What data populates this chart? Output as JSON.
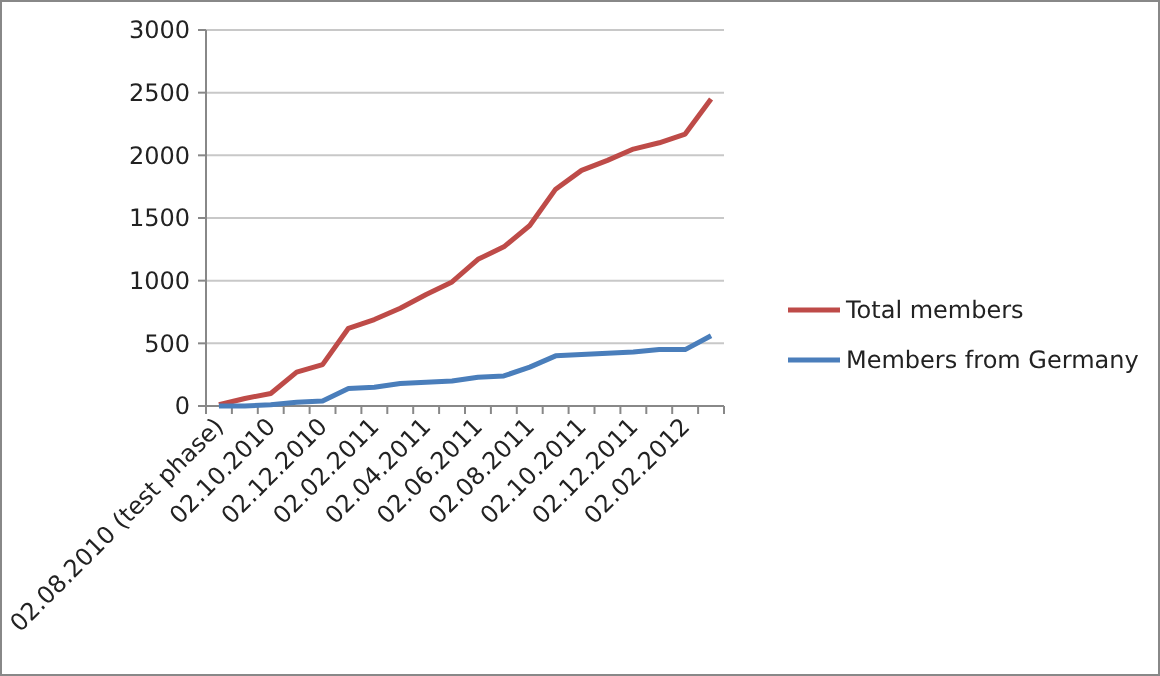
{
  "chart_data": {
    "type": "line",
    "categories": [
      "02.08.2010 (test phase)",
      null,
      "02.10.2010",
      null,
      "02.12.2010",
      null,
      "02.02.2011",
      null,
      "02.04.2011",
      null,
      "02.06.2011",
      null,
      "02.08.2011",
      null,
      "02.10.2011",
      null,
      "02.12.2011",
      null,
      "02.02.2012",
      null
    ],
    "series": [
      {
        "name": "Total members",
        "color": "#be4b48",
        "values": [
          10,
          60,
          100,
          270,
          330,
          620,
          690,
          780,
          890,
          990,
          1170,
          1270,
          1440,
          1730,
          1880,
          1960,
          2050,
          2100,
          2170,
          2450
        ]
      },
      {
        "name": "Members from Germany",
        "color": "#4a7ebb",
        "values": [
          0,
          0,
          10,
          30,
          40,
          140,
          150,
          180,
          190,
          200,
          230,
          240,
          310,
          400,
          410,
          420,
          430,
          450,
          450,
          560
        ]
      }
    ],
    "ylim": [
      0,
      3000
    ],
    "yticks": [
      0,
      500,
      1000,
      1500,
      2000,
      2500,
      3000
    ],
    "grid": "y",
    "legend": "right",
    "marker": "none",
    "line_style": "solid"
  }
}
